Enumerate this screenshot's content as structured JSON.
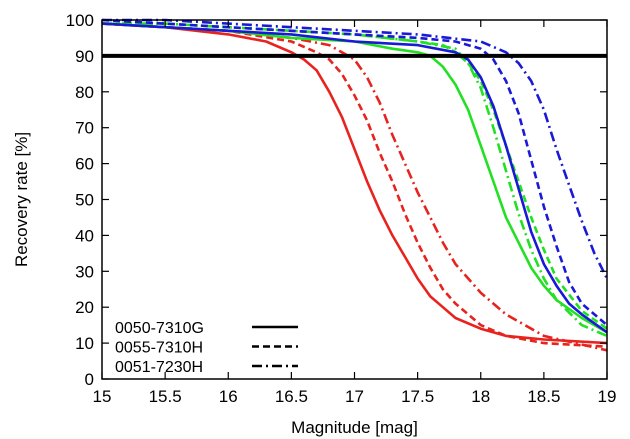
{
  "chart_data": {
    "type": "line",
    "title": "",
    "xlabel": "Magnitude [mag]",
    "ylabel": "Recovery rate [%]",
    "xlim": [
      15,
      19
    ],
    "ylim": [
      0,
      100
    ],
    "xticks": [
      15,
      15.5,
      16,
      16.5,
      17,
      17.5,
      18,
      18.5,
      19
    ],
    "xtick_labels": [
      "15",
      "15.5",
      "16",
      "16.5",
      "17",
      "17.5",
      "18",
      "18.5",
      "19"
    ],
    "yticks": [
      0,
      10,
      20,
      30,
      40,
      50,
      60,
      70,
      80,
      90,
      100
    ],
    "ytick_labels": [
      "0",
      "10",
      "20",
      "30",
      "40",
      "50",
      "60",
      "70",
      "80",
      "90",
      "100"
    ],
    "grid": false,
    "legend_position": "bottom-left",
    "reference_line": {
      "y": 90,
      "color": "#000000"
    },
    "legend": [
      {
        "label": "0050-7310G",
        "dash": "solid"
      },
      {
        "label": "0055-7310H",
        "dash": "dashed"
      },
      {
        "label": "0051-7230H",
        "dash": "dashdot"
      }
    ],
    "series": [
      {
        "field": "0050-7310G",
        "band": "red",
        "color": "#e8231e",
        "dash": "solid",
        "x": [
          15,
          15.5,
          16,
          16.3,
          16.5,
          16.6,
          16.7,
          16.8,
          16.9,
          17.0,
          17.1,
          17.2,
          17.3,
          17.4,
          17.5,
          17.6,
          17.7,
          17.8,
          18.0,
          18.2,
          18.5,
          19.0
        ],
        "y": [
          99,
          98,
          96,
          94,
          91,
          89,
          86,
          80,
          73,
          64,
          55,
          47,
          40,
          34,
          28,
          23,
          20,
          17,
          14,
          12,
          11,
          10
        ]
      },
      {
        "field": "0055-7310H",
        "band": "red",
        "color": "#e8231e",
        "dash": "dashed",
        "x": [
          15,
          15.5,
          16,
          16.5,
          16.7,
          16.8,
          16.9,
          17.0,
          17.1,
          17.2,
          17.3,
          17.4,
          17.5,
          17.6,
          17.7,
          17.8,
          18.0,
          18.2,
          18.5,
          19.0
        ],
        "y": [
          99,
          98,
          97,
          94,
          91,
          89,
          85,
          79,
          72,
          63,
          55,
          46,
          38,
          31,
          25,
          21,
          15,
          12,
          10,
          9
        ]
      },
      {
        "field": "0051-7230H",
        "band": "red",
        "color": "#e8231e",
        "dash": "dashdot",
        "x": [
          15,
          15.5,
          16,
          16.5,
          16.8,
          16.9,
          17.0,
          17.1,
          17.2,
          17.3,
          17.4,
          17.5,
          17.6,
          17.7,
          17.8,
          18.0,
          18.2,
          18.5,
          19.0
        ],
        "y": [
          99,
          98,
          97,
          95,
          93,
          91,
          89,
          84,
          77,
          68,
          60,
          52,
          45,
          38,
          32,
          24,
          18,
          12,
          8
        ]
      },
      {
        "field": "0050-7310G",
        "band": "green",
        "color": "#22e022",
        "dash": "solid",
        "x": [
          15,
          15.5,
          16,
          16.5,
          17.0,
          17.3,
          17.5,
          17.6,
          17.7,
          17.8,
          17.9,
          18.0,
          18.1,
          18.2,
          18.3,
          18.4,
          18.5,
          18.6,
          18.8,
          19.0
        ],
        "y": [
          99,
          98,
          97,
          95,
          94,
          92,
          91,
          90,
          87,
          82,
          75,
          65,
          55,
          45,
          38,
          31,
          26,
          22,
          17,
          13
        ]
      },
      {
        "field": "0055-7310H",
        "band": "green",
        "color": "#22e022",
        "dash": "dashed",
        "x": [
          15,
          15.5,
          16,
          16.5,
          17.0,
          17.5,
          17.7,
          17.8,
          17.9,
          18.0,
          18.1,
          18.2,
          18.3,
          18.4,
          18.5,
          18.6,
          18.8,
          19.0
        ],
        "y": [
          99,
          99,
          98,
          97,
          96,
          94,
          93,
          91,
          88,
          83,
          75,
          65,
          55,
          45,
          36,
          28,
          19,
          14
        ]
      },
      {
        "field": "0051-7230H",
        "band": "green",
        "color": "#22e022",
        "dash": "dashdot",
        "x": [
          15,
          15.5,
          16,
          16.5,
          17.0,
          17.5,
          17.8,
          17.9,
          18.0,
          18.1,
          18.2,
          18.3,
          18.4,
          18.5,
          18.6,
          18.8,
          19.0
        ],
        "y": [
          99,
          99,
          98,
          97,
          96,
          94,
          92,
          88,
          81,
          70,
          58,
          46,
          36,
          28,
          22,
          15,
          12
        ]
      },
      {
        "field": "0050-7310G",
        "band": "blue",
        "color": "#1a1ad6",
        "dash": "solid",
        "x": [
          15,
          15.5,
          16,
          16.5,
          17.0,
          17.5,
          17.8,
          17.9,
          18.0,
          18.1,
          18.2,
          18.3,
          18.4,
          18.5,
          18.6,
          18.7,
          18.8,
          19.0
        ],
        "y": [
          99,
          98,
          97,
          96,
          94,
          93,
          91,
          89,
          84,
          76,
          65,
          53,
          41,
          32,
          26,
          21,
          18,
          13
        ]
      },
      {
        "field": "0055-7310H",
        "band": "blue",
        "color": "#1a1ad6",
        "dash": "dashed",
        "x": [
          15,
          15.5,
          16,
          16.5,
          17.0,
          17.5,
          17.8,
          18.0,
          18.1,
          18.2,
          18.3,
          18.4,
          18.5,
          18.6,
          18.7,
          18.8,
          19.0
        ],
        "y": [
          100,
          99,
          98,
          97,
          96,
          95,
          94,
          92,
          89,
          83,
          74,
          61,
          48,
          37,
          27,
          21,
          15
        ]
      },
      {
        "field": "0051-7230H",
        "band": "blue",
        "color": "#1a1ad6",
        "dash": "dashdot",
        "x": [
          15,
          15.5,
          16,
          16.5,
          17.0,
          17.5,
          18.0,
          18.2,
          18.3,
          18.4,
          18.5,
          18.6,
          18.7,
          18.8,
          18.9,
          19.0
        ],
        "y": [
          100,
          100,
          99,
          98,
          97,
          96,
          94,
          91,
          88,
          83,
          75,
          64,
          54,
          44,
          35,
          28
        ]
      }
    ]
  }
}
